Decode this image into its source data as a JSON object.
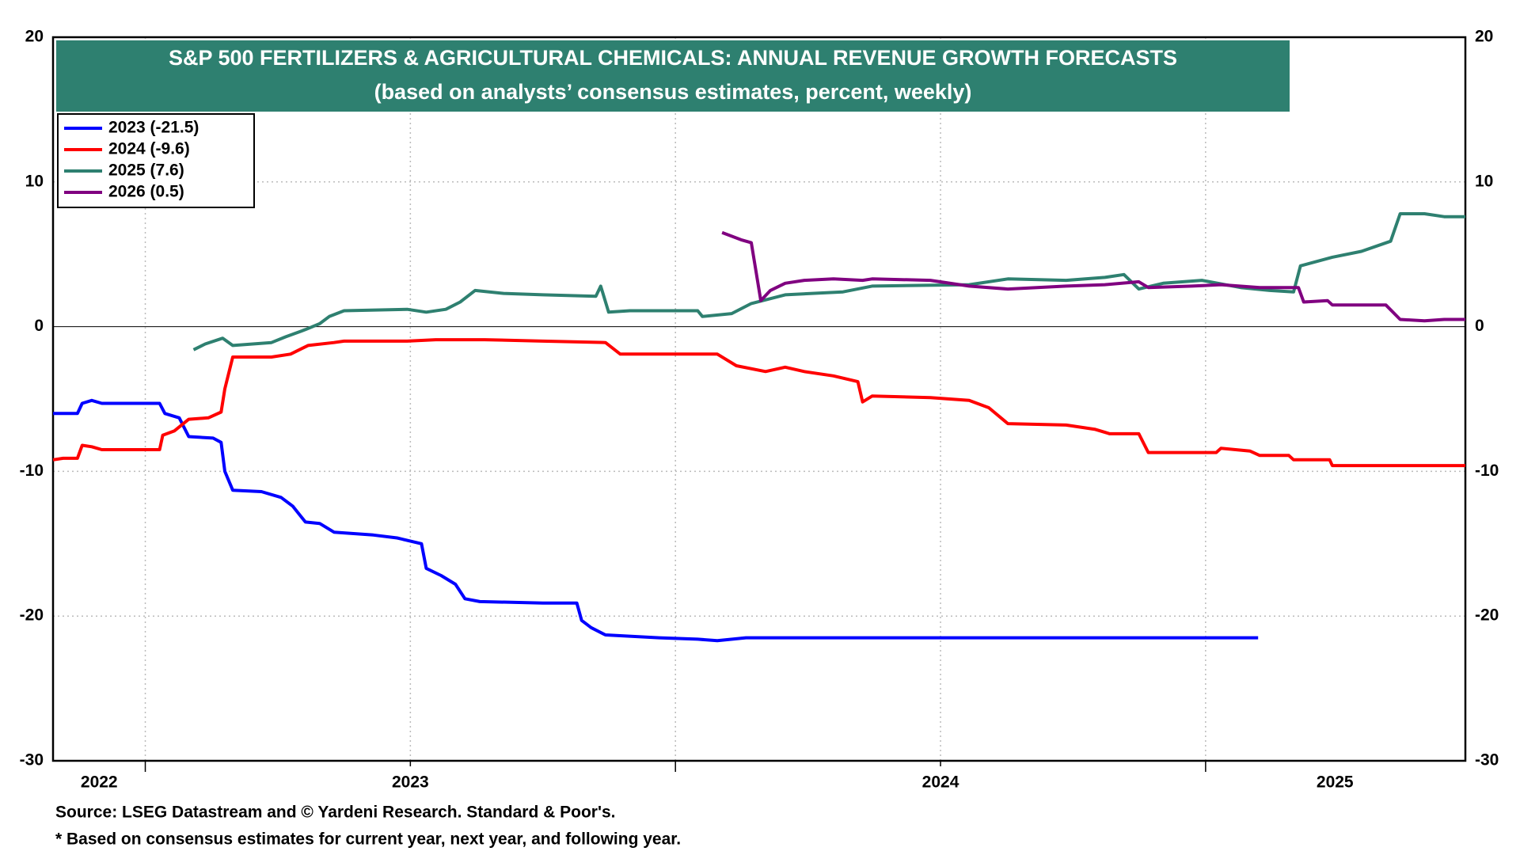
{
  "chart_data": {
    "type": "line",
    "title": "S&P 500 FERTILIZERS & AGRICULTURAL CHEMICALS: ANNUAL REVENUE GROWTH FORECASTS",
    "subtitle": "(based on analysts’ consensus estimates, percent, weekly)",
    "source": "Source: LSEG Datastream and © Yardeni Research. Standard & Poor's.",
    "note": "* Based on consensus estimates for current year, next year, and following year.",
    "xlim": [
      2022.826,
      2025.49
    ],
    "xticks": [
      {
        "value": 2022.913,
        "label": "2022"
      },
      {
        "value": 2023.5,
        "label": "2023"
      },
      {
        "value": 2024.5,
        "label": "2024"
      },
      {
        "value": 2025.244,
        "label": "2025"
      }
    ],
    "xgrid": [
      2023,
      2023.5,
      2024,
      2024.5,
      2025
    ],
    "ylim": [
      -30,
      20
    ],
    "yticks": [
      -30,
      -20,
      -10,
      0,
      10,
      20
    ],
    "y2lim": [
      -30,
      20
    ],
    "y2ticks": [
      -30,
      -20,
      -10,
      0,
      10,
      20
    ],
    "grid": true,
    "legend": "upper left",
    "series": [
      {
        "name": "2023 (-21.5)",
        "color": "#0000ff",
        "x": [
          2022.826,
          2022.872,
          2022.881,
          2022.899,
          2022.918,
          2023.027,
          2023.037,
          2023.064,
          2023.082,
          2023.128,
          2023.143,
          2023.15,
          2023.165,
          2023.219,
          2023.256,
          2023.278,
          2023.302,
          2023.329,
          2023.356,
          2023.43,
          2023.475,
          2023.521,
          2023.53,
          2023.558,
          2023.585,
          2023.603,
          2023.631,
          2023.75,
          2023.814,
          2023.823,
          2023.841,
          2023.868,
          2023.969,
          2024.042,
          2024.079,
          2024.133,
          2025.099
        ],
        "values": [
          -6.0,
          -6.0,
          -5.3,
          -5.1,
          -5.3,
          -5.3,
          -6.0,
          -6.3,
          -7.6,
          -7.7,
          -8.0,
          -10.0,
          -11.3,
          -11.4,
          -11.8,
          -12.4,
          -13.5,
          -13.6,
          -14.2,
          -14.4,
          -14.6,
          -15.0,
          -16.7,
          -17.2,
          -17.8,
          -18.8,
          -19.0,
          -19.1,
          -19.1,
          -20.3,
          -20.8,
          -21.3,
          -21.5,
          -21.6,
          -21.7,
          -21.5,
          -21.5
        ]
      },
      {
        "name": "2024 (-9.6)",
        "color": "#ff0000",
        "x": [
          2022.826,
          2022.845,
          2022.872,
          2022.881,
          2022.899,
          2022.918,
          2023.027,
          2023.033,
          2023.055,
          2023.082,
          2023.119,
          2023.143,
          2023.15,
          2023.165,
          2023.238,
          2023.274,
          2023.307,
          2023.356,
          2023.375,
          2023.494,
          2023.548,
          2023.603,
          2023.64,
          2023.75,
          2023.868,
          2023.896,
          2023.969,
          2024.005,
          2024.079,
          2024.115,
          2024.17,
          2024.207,
          2024.243,
          2024.298,
          2024.344,
          2024.353,
          2024.371,
          2024.481,
          2024.554,
          2024.591,
          2024.627,
          2024.737,
          2024.792,
          2024.819,
          2024.874,
          2024.892,
          2025.02,
          2025.029,
          2025.084,
          2025.102,
          2025.157,
          2025.166,
          2025.234,
          2025.239,
          2025.49
        ],
        "values": [
          -9.2,
          -9.1,
          -9.1,
          -8.2,
          -8.3,
          -8.5,
          -8.5,
          -7.5,
          -7.2,
          -6.4,
          -6.3,
          -5.9,
          -4.3,
          -2.1,
          -2.1,
          -1.9,
          -1.3,
          -1.1,
          -1.0,
          -1.0,
          -0.9,
          -0.9,
          -0.9,
          -1.0,
          -1.1,
          -1.9,
          -1.9,
          -1.9,
          -1.9,
          -2.7,
          -3.1,
          -2.8,
          -3.1,
          -3.4,
          -3.8,
          -5.2,
          -4.8,
          -4.9,
          -5.1,
          -5.6,
          -6.7,
          -6.8,
          -7.1,
          -7.4,
          -7.4,
          -8.7,
          -8.7,
          -8.4,
          -8.6,
          -8.9,
          -8.9,
          -9.2,
          -9.2,
          -9.6,
          -9.6
        ]
      },
      {
        "name": "2025 (7.6)",
        "color": "#2e8070",
        "x": [
          2023.091,
          2023.113,
          2023.146,
          2023.165,
          2023.238,
          2023.265,
          2023.302,
          2023.329,
          2023.347,
          2023.375,
          2023.494,
          2023.53,
          2023.567,
          2023.594,
          2023.622,
          2023.676,
          2023.75,
          2023.85,
          2023.859,
          2023.874,
          2023.914,
          2024.042,
          2024.051,
          2024.106,
          2024.143,
          2024.207,
          2024.316,
          2024.371,
          2024.554,
          2024.627,
          2024.737,
          2024.81,
          2024.846,
          2024.874,
          2024.92,
          2024.993,
          2025.066,
          2025.121,
          2025.166,
          2025.179,
          2025.239,
          2025.294,
          2025.349,
          2025.367,
          2025.413,
          2025.45,
          2025.49
        ],
        "values": [
          -1.6,
          -1.2,
          -0.8,
          -1.3,
          -1.1,
          -0.7,
          -0.2,
          0.2,
          0.7,
          1.1,
          1.2,
          1.0,
          1.2,
          1.7,
          2.5,
          2.3,
          2.2,
          2.1,
          2.8,
          1.0,
          1.1,
          1.1,
          0.7,
          0.9,
          1.6,
          2.2,
          2.4,
          2.8,
          2.9,
          3.3,
          3.2,
          3.4,
          3.6,
          2.6,
          3.0,
          3.2,
          2.7,
          2.5,
          2.4,
          4.2,
          4.8,
          5.2,
          5.9,
          7.8,
          7.8,
          7.6,
          7.6
        ]
      },
      {
        "name": "2026 (0.5)",
        "color": "#800080",
        "x": [
          2024.088,
          2024.124,
          2024.143,
          2024.152,
          2024.161,
          2024.179,
          2024.207,
          2024.243,
          2024.298,
          2024.353,
          2024.371,
          2024.481,
          2024.554,
          2024.627,
          2024.737,
          2024.81,
          2024.874,
          2024.892,
          2024.974,
          2025.029,
          2025.102,
          2025.175,
          2025.185,
          2025.23,
          2025.239,
          2025.34,
          2025.367,
          2025.413,
          2025.45,
          2025.49
        ],
        "values": [
          6.5,
          6.0,
          5.8,
          3.8,
          1.8,
          2.5,
          3.0,
          3.2,
          3.3,
          3.2,
          3.3,
          3.2,
          2.8,
          2.6,
          2.8,
          2.9,
          3.1,
          2.7,
          2.8,
          2.9,
          2.7,
          2.7,
          1.7,
          1.8,
          1.5,
          1.5,
          0.5,
          0.4,
          0.5,
          0.5
        ]
      }
    ]
  }
}
